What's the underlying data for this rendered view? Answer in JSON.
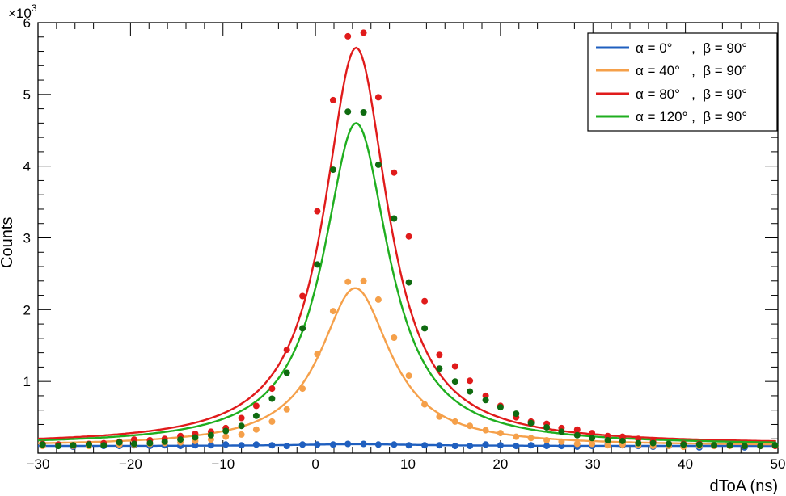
{
  "chart_data": {
    "type": "scatter",
    "title": "",
    "xlabel": "dToA (ns)",
    "ylabel": "Counts",
    "y_multiplier": "×10",
    "y_multiplier_exp": "3",
    "xlim": [
      -30,
      50
    ],
    "ylim": [
      0,
      6000
    ],
    "x_ticks": [
      -30,
      -20,
      -10,
      0,
      10,
      20,
      30,
      40,
      50
    ],
    "x_tick_labels": [
      "−30",
      "−20",
      "−10",
      "0",
      "10",
      "20",
      "30",
      "40",
      "50"
    ],
    "y_ticks": [
      1000,
      2000,
      3000,
      4000,
      5000,
      6000
    ],
    "y_tick_labels": [
      "1",
      "2",
      "3",
      "4",
      "5",
      "6"
    ],
    "grid": false,
    "legend_position": "top-right",
    "series": [
      {
        "name": "α = 0°     ,  β = 90°",
        "color": "#1f5fbf",
        "x": [
          -29.5,
          -27.8,
          -26.2,
          -24.5,
          -22.9,
          -21.2,
          -19.6,
          -17.9,
          -16.3,
          -14.6,
          -13.0,
          -11.3,
          -9.7,
          -8.0,
          -6.4,
          -4.7,
          -3.1,
          -1.4,
          0.2,
          1.9,
          3.5,
          5.2,
          6.8,
          8.5,
          10.1,
          11.8,
          13.4,
          15.1,
          16.7,
          18.4,
          20.0,
          21.7,
          23.3,
          25.0,
          26.6,
          28.3,
          29.9,
          31.6,
          33.2,
          34.9,
          36.5,
          38.2,
          39.8,
          41.5,
          43.1,
          44.8,
          46.4,
          48.1,
          49.7
        ],
        "y": [
          110,
          120,
          90,
          110,
          100,
          100,
          110,
          100,
          110,
          100,
          110,
          110,
          120,
          110,
          120,
          110,
          100,
          120,
          120,
          120,
          130,
          130,
          120,
          120,
          110,
          110,
          110,
          100,
          100,
          120,
          110,
          100,
          110,
          100,
          100,
          90,
          100,
          120,
          110,
          100,
          90,
          100,
          100,
          80,
          100,
          110,
          80,
          100,
          110
        ],
        "fit": {
          "peak": 125,
          "center": 4.5,
          "width": 8,
          "baseline": 100
        }
      },
      {
        "name": "α = 40°   ,  β = 90°",
        "color": "#f5a04a",
        "x": [
          -29.5,
          -27.8,
          -26.2,
          -24.5,
          -22.9,
          -21.2,
          -19.6,
          -17.9,
          -16.3,
          -14.6,
          -13.0,
          -11.3,
          -9.7,
          -8.0,
          -6.4,
          -4.7,
          -3.1,
          -1.4,
          0.2,
          1.9,
          3.5,
          5.2,
          6.8,
          8.5,
          10.1,
          11.8,
          13.4,
          15.1,
          16.7,
          18.4,
          20.0,
          21.7,
          23.3,
          25.0,
          26.6,
          28.3,
          29.9,
          31.6,
          33.2,
          34.9,
          36.5,
          38.2,
          39.8,
          41.5,
          43.1,
          44.8,
          46.4,
          48.1,
          49.7
        ],
        "y": [
          100,
          110,
          100,
          100,
          110,
          120,
          120,
          130,
          140,
          150,
          170,
          190,
          230,
          260,
          330,
          440,
          610,
          900,
          1380,
          1980,
          2390,
          2400,
          2140,
          1610,
          1080,
          680,
          510,
          440,
          380,
          320,
          280,
          230,
          210,
          180,
          160,
          130,
          130,
          110,
          120,
          110,
          100,
          100,
          90,
          100,
          100,
          100,
          100,
          100,
          100
        ],
        "fit": {
          "peak": 2300,
          "center": 4.3,
          "width": 4.6,
          "baseline": 100
        }
      },
      {
        "name": "α = 80°   ,  β = 90°",
        "color": "#e01b1b",
        "x": [
          -29.5,
          -27.8,
          -26.2,
          -24.5,
          -22.9,
          -21.2,
          -19.6,
          -17.9,
          -16.3,
          -14.6,
          -13.0,
          -11.3,
          -9.7,
          -8.0,
          -6.4,
          -4.7,
          -3.1,
          -1.4,
          0.2,
          1.9,
          3.5,
          5.2,
          6.8,
          8.5,
          10.1,
          11.8,
          13.4,
          15.1,
          16.7,
          18.4,
          20.0,
          21.7,
          23.3,
          25.0,
          26.6,
          28.3,
          29.9,
          31.6,
          33.2,
          34.9,
          36.5,
          38.2,
          39.8,
          41.5,
          43.1,
          44.8,
          46.4,
          48.1,
          49.7
        ],
        "y": [
          130,
          120,
          110,
          130,
          140,
          160,
          190,
          180,
          200,
          240,
          270,
          300,
          350,
          490,
          660,
          900,
          1440,
          2190,
          3370,
          4920,
          5810,
          5860,
          4960,
          3910,
          3020,
          2120,
          1370,
          1210,
          1010,
          800,
          660,
          500,
          440,
          410,
          350,
          330,
          280,
          240,
          230,
          200,
          160,
          130,
          130,
          130,
          110,
          110,
          100,
          100,
          100
        ],
        "fit": {
          "peak": 5650,
          "center": 4.4,
          "width": 4.2,
          "baseline": 120
        }
      },
      {
        "name": "α = 120° ,  β = 90°",
        "color": "#1fae1f",
        "x": [
          -29.5,
          -27.8,
          -26.2,
          -24.5,
          -22.9,
          -21.2,
          -19.6,
          -17.9,
          -16.3,
          -14.6,
          -13.0,
          -11.3,
          -9.7,
          -8.0,
          -6.4,
          -4.7,
          -3.1,
          -1.4,
          0.2,
          1.9,
          3.5,
          5.2,
          6.8,
          8.5,
          10.1,
          11.8,
          13.4,
          15.1,
          16.7,
          18.4,
          20.0,
          21.7,
          23.3,
          25.0,
          26.6,
          28.3,
          29.9,
          31.6,
          33.2,
          34.9,
          36.5,
          38.2,
          39.8,
          41.5,
          43.1,
          44.8,
          46.4,
          48.1,
          49.7
        ],
        "y": [
          120,
          100,
          110,
          120,
          110,
          150,
          130,
          140,
          160,
          190,
          220,
          250,
          310,
          380,
          520,
          760,
          1120,
          1740,
          2630,
          3950,
          4760,
          4750,
          4020,
          3270,
          2380,
          1740,
          1180,
          1000,
          860,
          740,
          640,
          550,
          420,
          360,
          300,
          250,
          210,
          180,
          170,
          140,
          140,
          130,
          120,
          120,
          110,
          110,
          100,
          100,
          110
        ],
        "fit": {
          "peak": 4600,
          "center": 4.4,
          "width": 4.3,
          "baseline": 110
        }
      }
    ]
  }
}
